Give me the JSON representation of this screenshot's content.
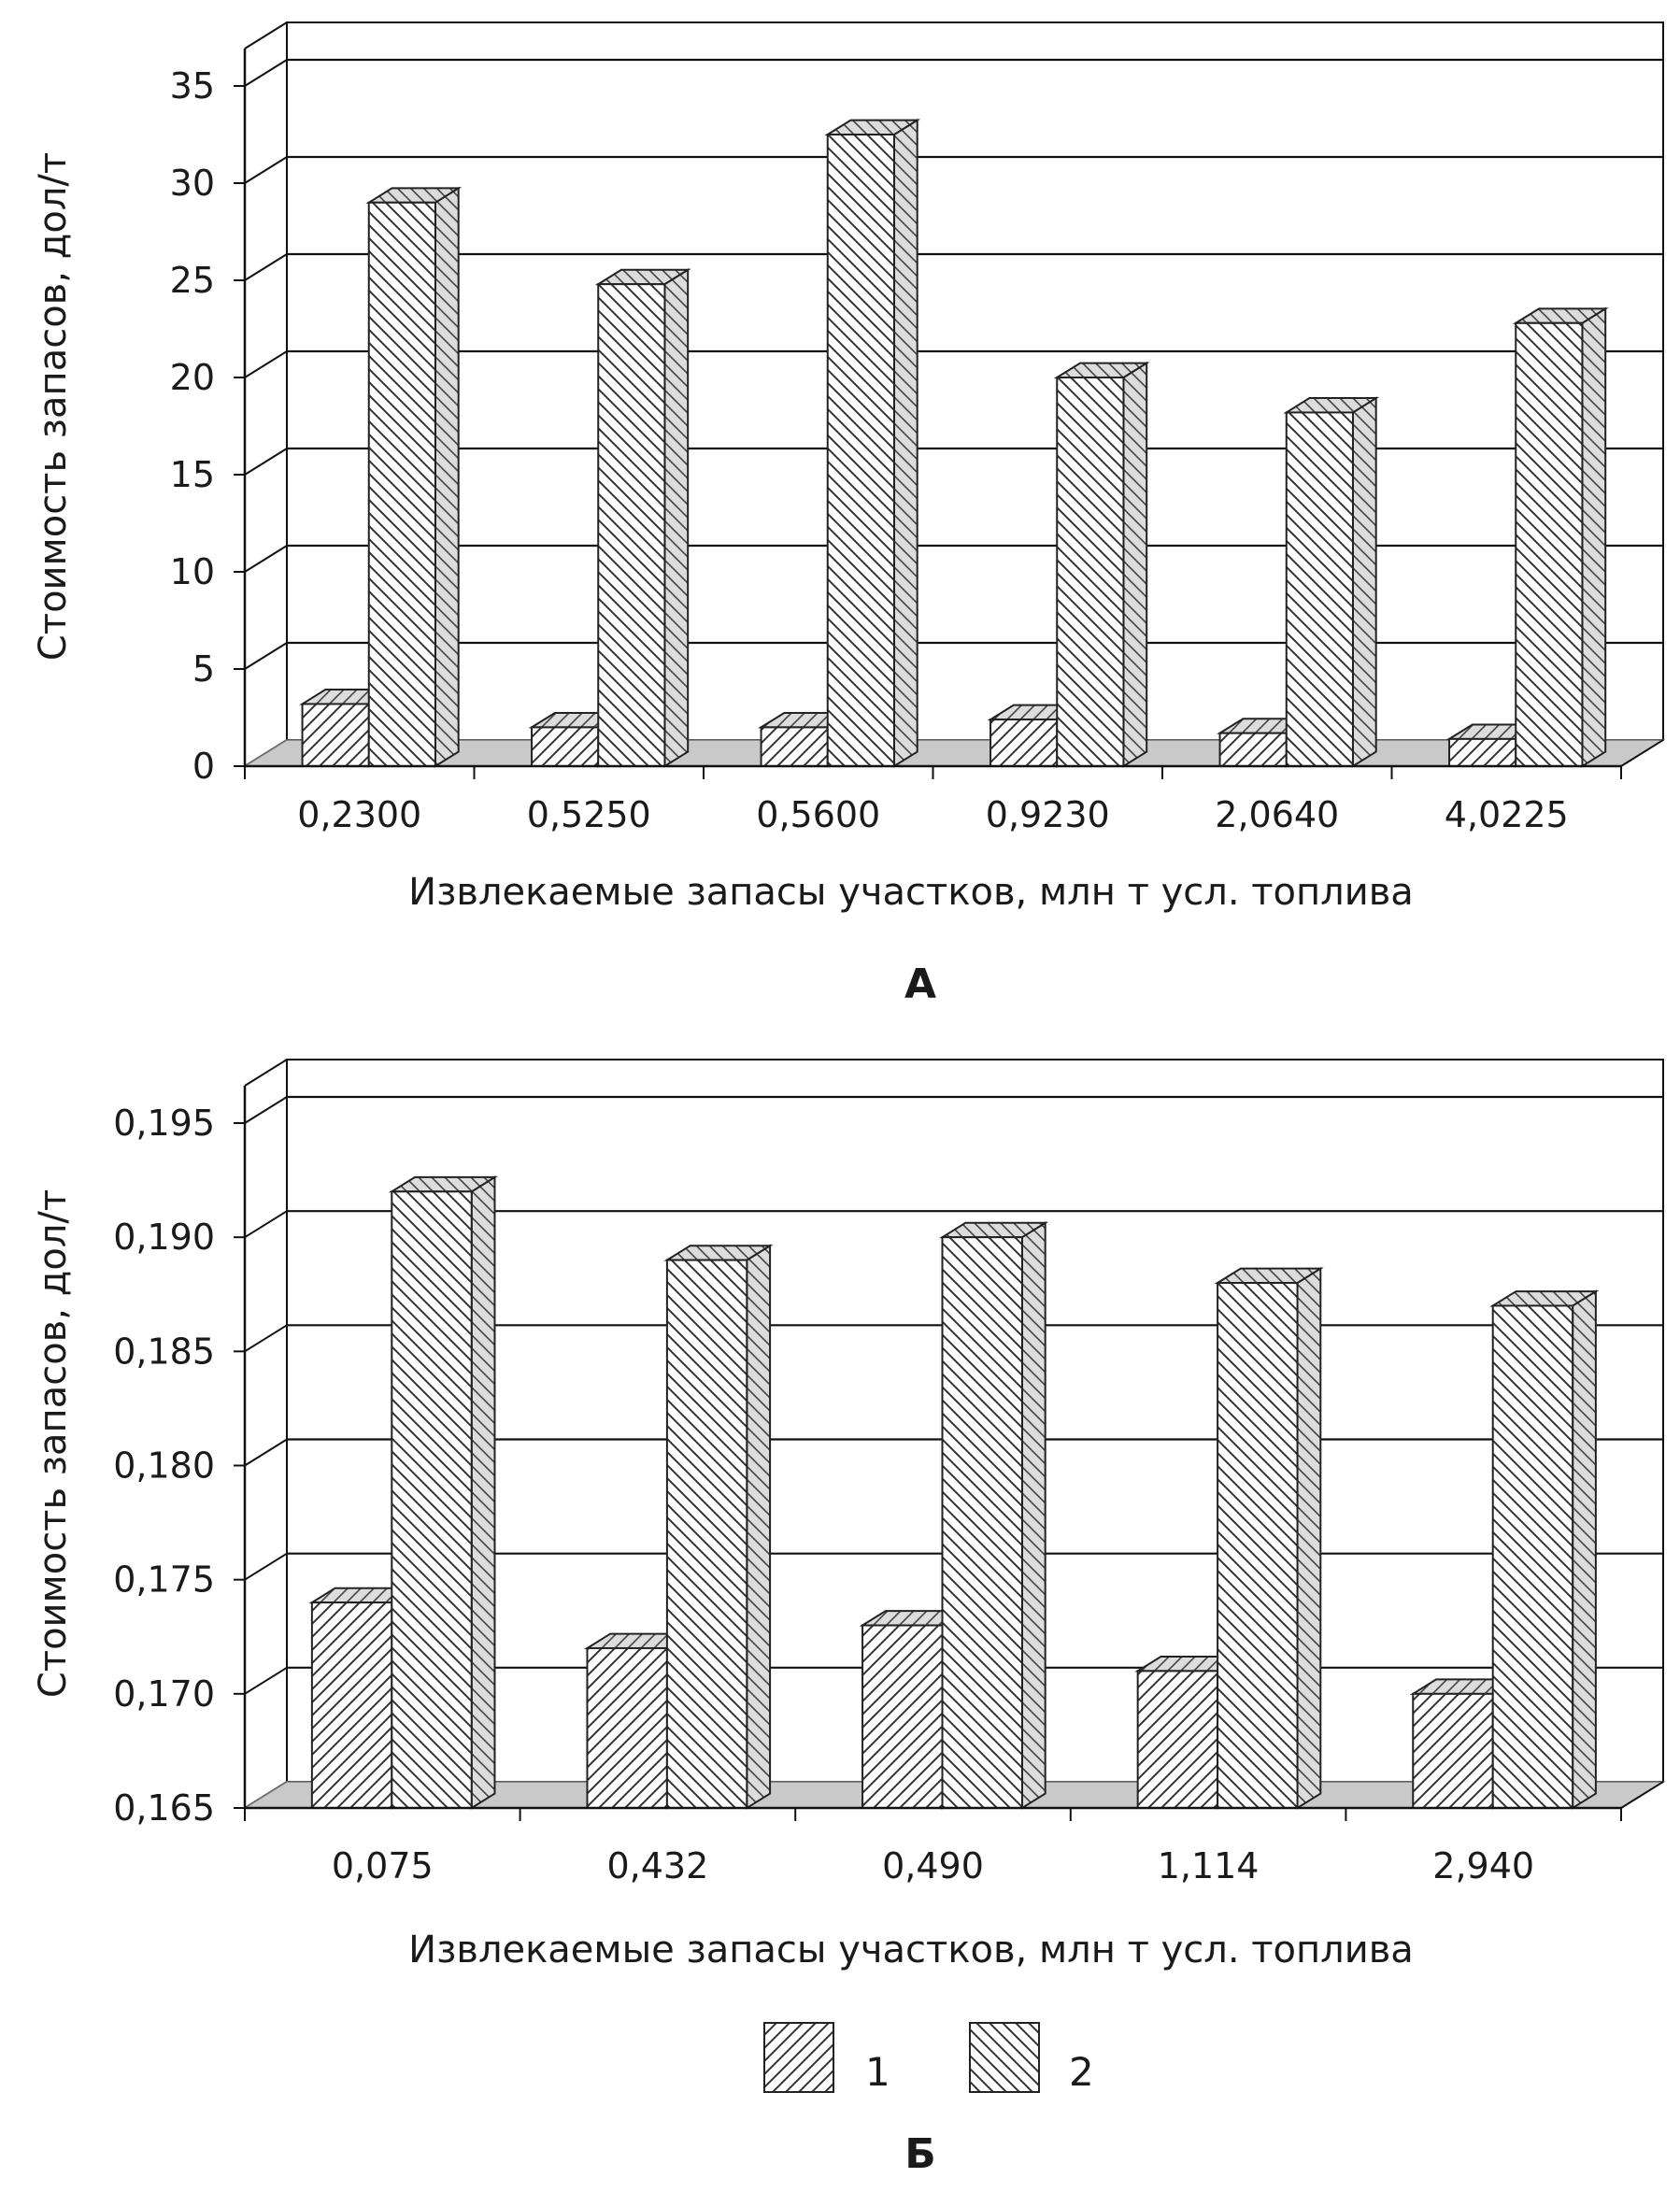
{
  "chart_data": [
    {
      "type": "bar",
      "panel": "А",
      "ylabel": "Стоимость запасов, дол/т",
      "xlabel": "Извлекаемые запасы участков, млн т усл. топлива",
      "ylim": [
        0,
        35
      ],
      "yticks": [
        "0",
        "5",
        "10",
        "15",
        "20",
        "25",
        "30",
        "35"
      ],
      "categories": [
        "0,2300",
        "0,5250",
        "0,5600",
        "0,9230",
        "2,0640",
        "4,0225"
      ],
      "series": [
        {
          "name": "1",
          "values": [
            3.2,
            2.0,
            2.0,
            2.4,
            1.7,
            1.4
          ]
        },
        {
          "name": "2",
          "values": [
            29.0,
            24.8,
            32.5,
            20.0,
            18.2,
            22.8
          ]
        }
      ],
      "grid": true
    },
    {
      "type": "bar",
      "panel": "Б",
      "ylabel": "Стоимость запасов, дол/т",
      "xlabel": "Извлекаемые запасы участков, млн т усл. топлива",
      "ylim": [
        0.165,
        0.195
      ],
      "yticks": [
        "0,165",
        "0,170",
        "0,175",
        "0,180",
        "0,185",
        "0,190",
        "0,195"
      ],
      "categories": [
        "0,075",
        "0,432",
        "0,490",
        "1,114",
        "2,940"
      ],
      "series": [
        {
          "name": "1",
          "values": [
            0.174,
            0.172,
            0.173,
            0.171,
            0.17
          ]
        },
        {
          "name": "2",
          "values": [
            0.192,
            0.189,
            0.19,
            0.188,
            0.187
          ]
        }
      ],
      "grid": true
    }
  ],
  "legend": {
    "items": [
      {
        "label": "1",
        "pattern": "forward-hatch"
      },
      {
        "label": "2",
        "pattern": "backward-hatch"
      }
    ]
  },
  "colors": {
    "bar_fill": "#ffffff",
    "bar_side": "#d6d6d6",
    "floor": "#c9c9c9",
    "grid": "#111111",
    "hatch": "#333333"
  }
}
